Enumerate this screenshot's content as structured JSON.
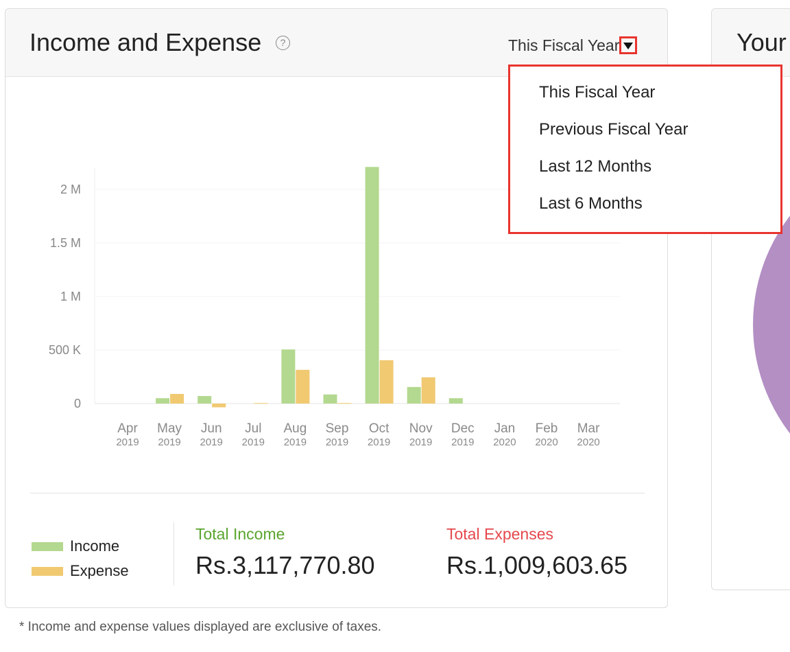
{
  "card": {
    "title": "Income and Expense",
    "help_glyph": "?",
    "period_selected": "This Fiscal Year"
  },
  "dropdown": {
    "options": [
      "This Fiscal Year",
      "Previous Fiscal Year",
      "Last 12 Months",
      "Last 6 Months"
    ]
  },
  "chart_data": {
    "type": "bar",
    "categories": [
      "Apr",
      "May",
      "Jun",
      "Jul",
      "Aug",
      "Sep",
      "Oct",
      "Nov",
      "Dec",
      "Jan",
      "Feb",
      "Mar"
    ],
    "category_years": [
      "2019",
      "2019",
      "2019",
      "2019",
      "2019",
      "2019",
      "2019",
      "2019",
      "2019",
      "2020",
      "2020",
      "2020"
    ],
    "series": [
      {
        "name": "Income",
        "color": "#b3d88f",
        "values": [
          0,
          50000,
          70000,
          0,
          505000,
          85000,
          2210000,
          155000,
          50000,
          0,
          0,
          0
        ]
      },
      {
        "name": "Expense",
        "color": "#f0c971",
        "values": [
          0,
          90000,
          -35000,
          5000,
          315000,
          5000,
          405000,
          245000,
          0,
          0,
          0,
          0
        ]
      }
    ],
    "y_ticks": [
      0,
      500000,
      1000000,
      1500000,
      2000000
    ],
    "y_tick_labels": [
      "0",
      "500 K",
      "1 M",
      "1.5 M",
      "2 M"
    ],
    "ylim": [
      -50000,
      2200000
    ],
    "grid": true
  },
  "legend": {
    "income_label": "Income",
    "expense_label": "Expense",
    "income_color": "#b3d88f",
    "expense_color": "#f0c971"
  },
  "totals": {
    "income_label": "Total Income",
    "income_value": "Rs.3,117,770.80",
    "expense_label": "Total Expenses",
    "expense_value": "Rs.1,009,603.65"
  },
  "footnote": "* Income and expense values displayed are exclusive of taxes.",
  "right_card": {
    "title_partial": "Your"
  }
}
